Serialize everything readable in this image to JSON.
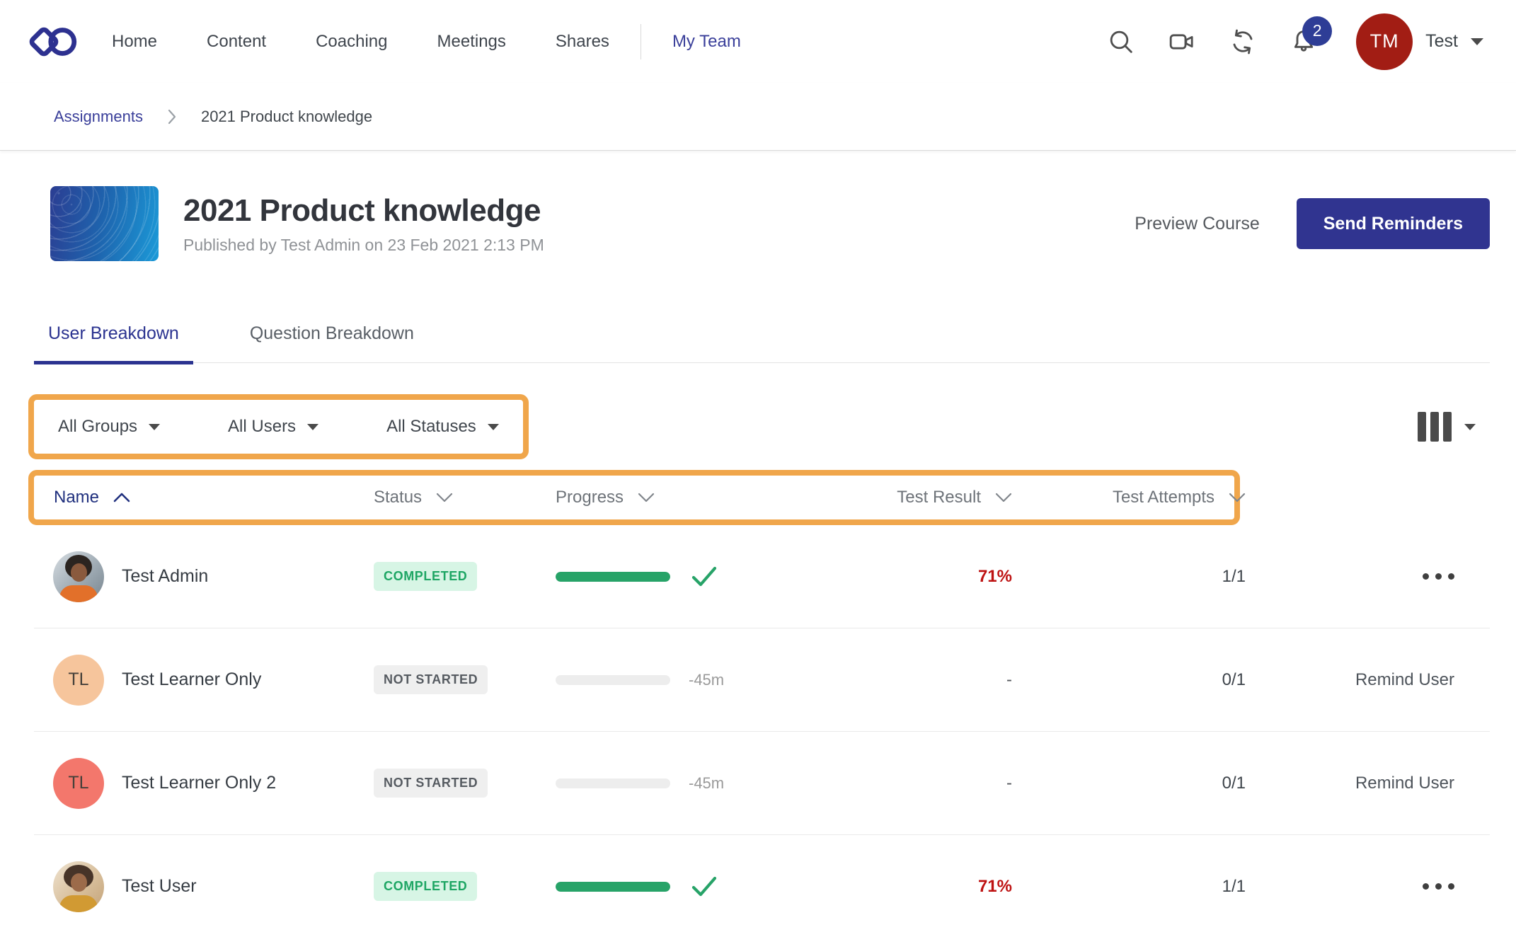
{
  "colors": {
    "brand_navy": "#303490",
    "link_navy": "#3A3F9A",
    "sort_navy": "#20307E",
    "highlight_orange": "#F0A64B",
    "success_green": "#27A368",
    "success_badge_bg": "#D7F5E5",
    "success_badge_text": "#1EA664",
    "neutral_badge_bg": "#EFEFEF",
    "neutral_badge_text": "#565B61",
    "result_red": "#BE1212",
    "notification_blue": "#2E3D96",
    "user_avatar_red": "#A21D14"
  },
  "topnav": {
    "logo_icon": "infinity-logo",
    "items": [
      {
        "label": "Home"
      },
      {
        "label": "Content"
      },
      {
        "label": "Coaching"
      },
      {
        "label": "Meetings"
      },
      {
        "label": "Shares"
      },
      {
        "label": "My Team",
        "active": true
      }
    ],
    "icons": [
      "search-icon",
      "video-icon",
      "sync-icon",
      "bell-icon"
    ],
    "notification_count": "2",
    "user": {
      "initials": "TM",
      "name": "Test"
    }
  },
  "breadcrumb": {
    "parent": "Assignments",
    "current": "2021 Product knowledge"
  },
  "course": {
    "title": "2021 Product knowledge",
    "published": "Published by Test Admin on 23 Feb 2021 2:13 PM",
    "preview_label": "Preview Course",
    "send_reminders_label": "Send Reminders"
  },
  "tabs": [
    {
      "label": "User Breakdown",
      "active": true
    },
    {
      "label": "Question Breakdown",
      "active": false
    }
  ],
  "filters": [
    {
      "label": "All Groups"
    },
    {
      "label": "All Users"
    },
    {
      "label": "All Statuses"
    }
  ],
  "columns_button": {
    "icon": "columns-icon"
  },
  "table": {
    "columns": [
      {
        "label": "Name",
        "sort": "asc"
      },
      {
        "label": "Status",
        "sort": "none"
      },
      {
        "label": "Progress",
        "sort": "none"
      },
      {
        "label": "Test Result",
        "sort": "none"
      },
      {
        "label": "Test Attempts",
        "sort": "none"
      }
    ],
    "rows": [
      {
        "name": "Test Admin",
        "avatar": "photo",
        "status": "COMPLETED",
        "progress_percent": 100,
        "progress_note": "",
        "test_result": "71%",
        "test_attempts": "1/1",
        "action": "menu"
      },
      {
        "name": "Test Learner Only",
        "avatar": "initials",
        "initials": "TL",
        "avatar_color": "#F6C59C",
        "status": "NOT STARTED",
        "progress_percent": 0,
        "progress_note": "-45m",
        "test_result": "-",
        "test_attempts": "0/1",
        "action": "Remind User"
      },
      {
        "name": "Test Learner Only 2",
        "avatar": "initials",
        "initials": "TL",
        "avatar_color": "#F3776C",
        "status": "NOT STARTED",
        "progress_percent": 0,
        "progress_note": "-45m",
        "test_result": "-",
        "test_attempts": "0/1",
        "action": "Remind User"
      },
      {
        "name": "Test User",
        "avatar": "photo",
        "status": "COMPLETED",
        "progress_percent": 100,
        "progress_note": "",
        "test_result": "71%",
        "test_attempts": "1/1",
        "action": "menu"
      }
    ]
  }
}
